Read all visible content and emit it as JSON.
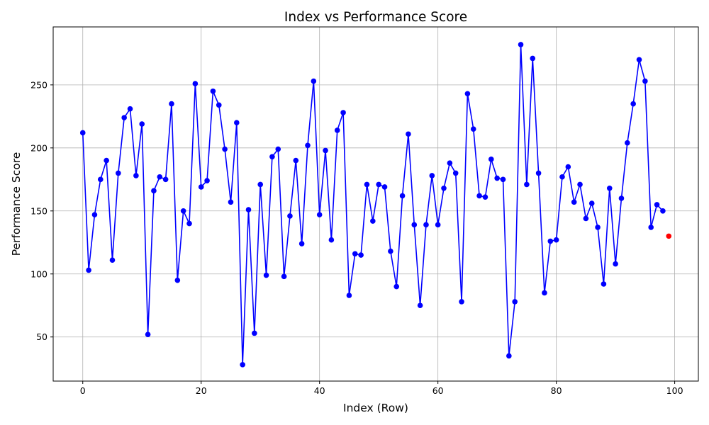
{
  "chart_data": {
    "type": "line",
    "title": "Index vs Performance Score",
    "xlabel": "Index (Row)",
    "ylabel": "Performance Score",
    "xlim": [
      -5,
      104
    ],
    "ylim": [
      15,
      296
    ],
    "xticks": [
      0,
      20,
      40,
      60,
      80,
      100
    ],
    "yticks": [
      50,
      100,
      150,
      200,
      250
    ],
    "grid": true,
    "series": [
      {
        "color": "#0000ff",
        "marker": "circle",
        "x": [
          0,
          1,
          2,
          3,
          4,
          5,
          6,
          7,
          8,
          9,
          10,
          11,
          12,
          13,
          14,
          15,
          16,
          17,
          18,
          19,
          20,
          21,
          22,
          23,
          24,
          25,
          26,
          27,
          28,
          29,
          30,
          31,
          32,
          33,
          34,
          35,
          36,
          37,
          38,
          39,
          40,
          41,
          42,
          43,
          44,
          45,
          46,
          47,
          48,
          49,
          50,
          51,
          52,
          53,
          54,
          55,
          56,
          57,
          58,
          59,
          60,
          61,
          62,
          63,
          64,
          65,
          66,
          67,
          68,
          69,
          70,
          71,
          72,
          73,
          74,
          75,
          76,
          77,
          78,
          79,
          80,
          81,
          82,
          83,
          84,
          85,
          86,
          87,
          88,
          89,
          90,
          91,
          92,
          93,
          94,
          95,
          96,
          97,
          98
        ],
        "values": [
          212,
          103,
          147,
          175,
          190,
          111,
          180,
          224,
          231,
          178,
          219,
          52,
          166,
          177,
          175,
          235,
          95,
          150,
          140,
          251,
          169,
          174,
          245,
          234,
          199,
          157,
          220,
          28,
          151,
          53,
          171,
          99,
          193,
          199,
          98,
          146,
          190,
          124,
          202,
          253,
          147,
          198,
          127,
          214,
          228,
          83,
          116,
          115,
          171,
          142,
          171,
          169,
          118,
          90,
          162,
          211,
          139,
          75,
          139,
          178,
          139,
          168,
          188,
          180,
          78,
          243,
          215,
          162,
          161,
          191,
          176,
          175,
          35,
          78,
          282,
          171,
          271,
          180,
          85,
          126,
          127,
          177,
          185,
          157,
          171,
          144,
          156,
          137,
          92,
          168,
          108,
          160,
          204,
          235,
          270,
          253,
          137,
          155,
          150
        ]
      },
      {
        "color": "#ff0000",
        "marker": "circle",
        "line": false,
        "x": [
          99
        ],
        "values": [
          130
        ]
      }
    ]
  }
}
